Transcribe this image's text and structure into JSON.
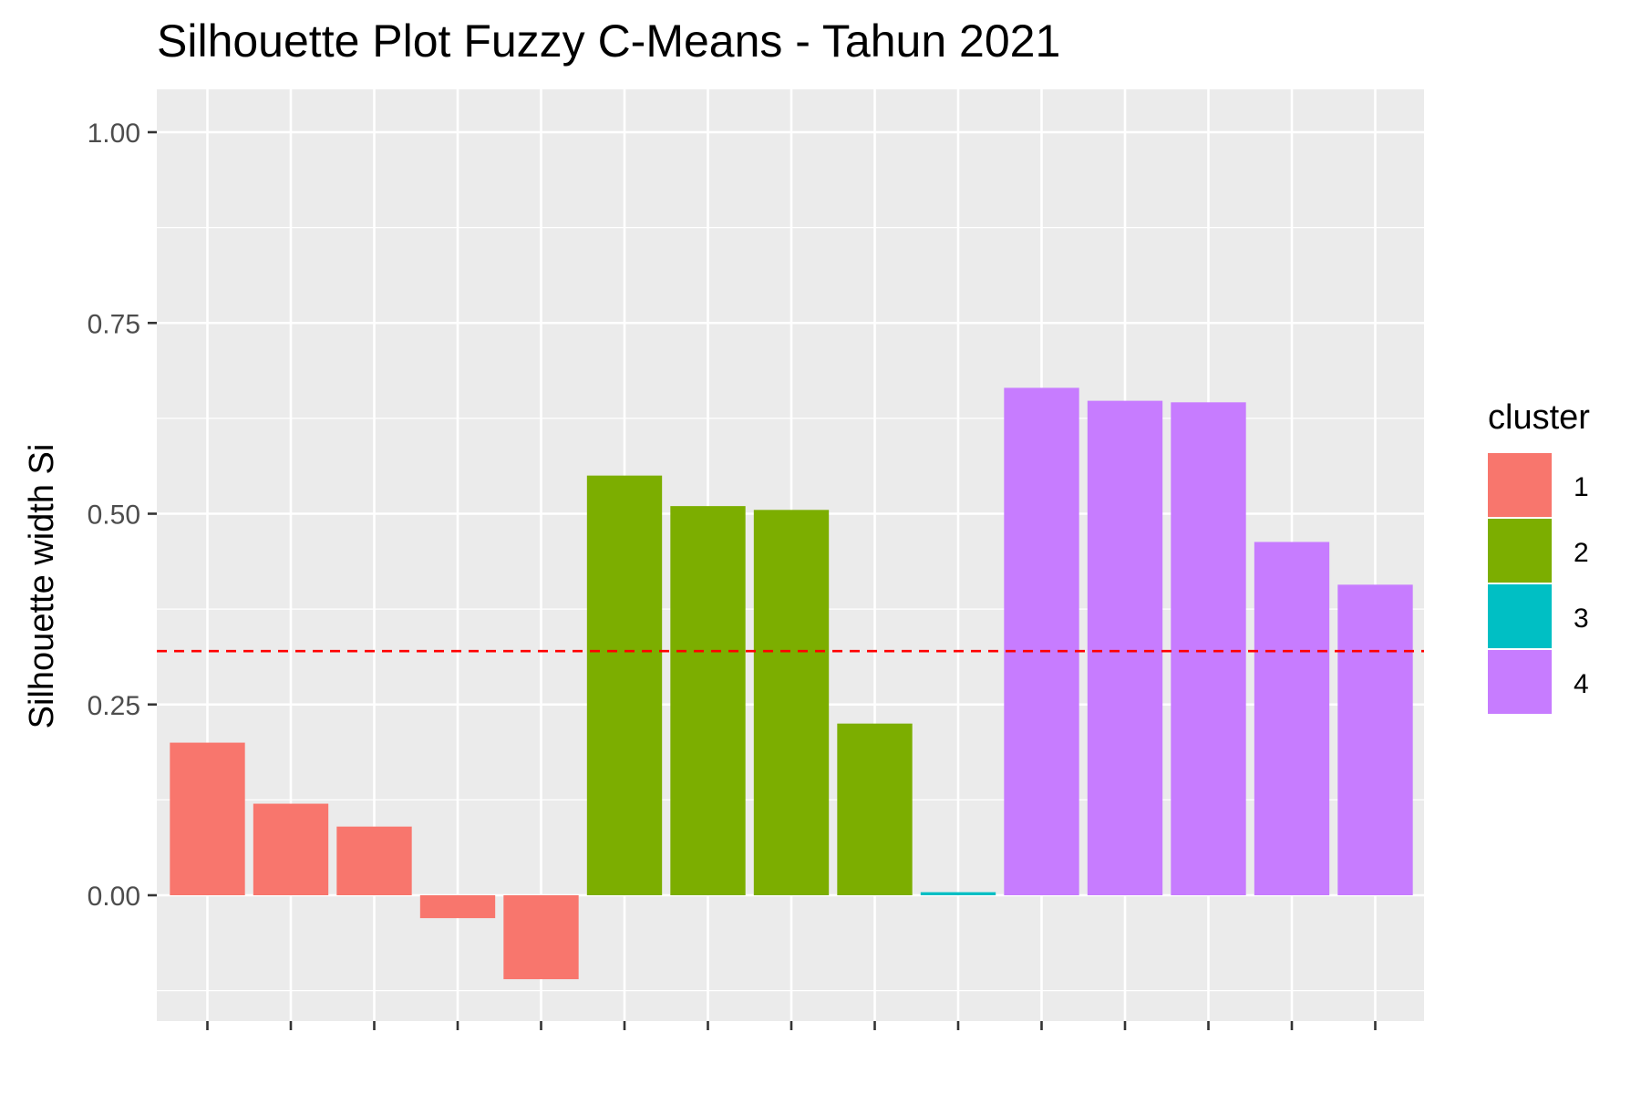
{
  "chart_data": {
    "type": "bar",
    "title": "Silhouette Plot Fuzzy C-Means - Tahun 2021",
    "xlabel": "",
    "ylabel": "Silhouette width Si",
    "ylim": [
      -0.16,
      1.04
    ],
    "yticks": [
      0.0,
      0.25,
      0.5,
      0.75,
      1.0
    ],
    "ytick_labels": [
      "0.00",
      "0.25",
      "0.50",
      "0.75",
      "1.00"
    ],
    "average_line": {
      "value": 0.32,
      "color": "#ff0000",
      "style": "dashed"
    },
    "grid": true,
    "legend": {
      "title": "cluster",
      "position": "right",
      "entries": [
        {
          "label": "1",
          "color": "#F8766D"
        },
        {
          "label": "2",
          "color": "#7CAE00"
        },
        {
          "label": "3",
          "color": "#00BFC4"
        },
        {
          "label": "4",
          "color": "#C77CFF"
        }
      ]
    },
    "bars": [
      {
        "cluster": "1",
        "value": 0.2
      },
      {
        "cluster": "1",
        "value": 0.12
      },
      {
        "cluster": "1",
        "value": 0.09
      },
      {
        "cluster": "1",
        "value": -0.03
      },
      {
        "cluster": "1",
        "value": -0.11
      },
      {
        "cluster": "2",
        "value": 0.55
      },
      {
        "cluster": "2",
        "value": 0.51
      },
      {
        "cluster": "2",
        "value": 0.505
      },
      {
        "cluster": "2",
        "value": 0.225
      },
      {
        "cluster": "3",
        "value": 0.004
      },
      {
        "cluster": "4",
        "value": 0.665
      },
      {
        "cluster": "4",
        "value": 0.648
      },
      {
        "cluster": "4",
        "value": 0.646
      },
      {
        "cluster": "4",
        "value": 0.463
      },
      {
        "cluster": "4",
        "value": 0.407
      }
    ]
  }
}
